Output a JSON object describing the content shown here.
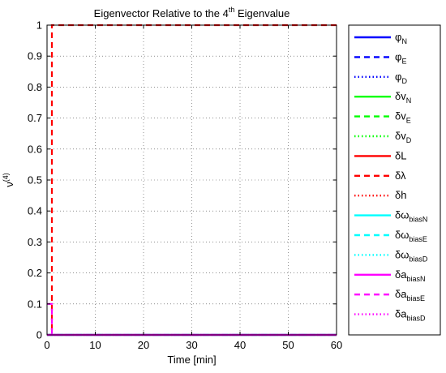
{
  "chart_data": {
    "type": "line",
    "title": "Eigenvector Relative to the 4th Eigenvalue",
    "title_parts": {
      "pre": "Eigenvector Relative to the 4",
      "sup": "th",
      "post": " Eigenvalue"
    },
    "xlabel": "Time [min]",
    "ylabel": {
      "base": "ν",
      "sup": "(4)"
    },
    "xlim": [
      0,
      60
    ],
    "ylim": [
      0,
      1
    ],
    "xticks": [
      0,
      10,
      20,
      30,
      40,
      50,
      60
    ],
    "yticks": [
      0,
      0.1,
      0.2,
      0.3,
      0.4,
      0.5,
      0.6,
      0.7,
      0.8,
      0.9,
      1
    ],
    "grid": true,
    "legend_position": "outside-right",
    "series": [
      {
        "name": "φN",
        "label": {
          "base": "φ",
          "sub": "N"
        },
        "color": "#0000ff",
        "style": "solid",
        "x": [
          0,
          60
        ],
        "y": [
          0,
          0
        ]
      },
      {
        "name": "φE",
        "label": {
          "base": "φ",
          "sub": "E"
        },
        "color": "#0000ff",
        "style": "dashed",
        "x": [
          0,
          60
        ],
        "y": [
          0,
          0
        ]
      },
      {
        "name": "φD",
        "label": {
          "base": "φ",
          "sub": "D"
        },
        "color": "#0000ff",
        "style": "dotted",
        "x": [
          0,
          60
        ],
        "y": [
          0,
          0
        ]
      },
      {
        "name": "δvN",
        "label": {
          "base": "δv",
          "sub": "N"
        },
        "color": "#00ff00",
        "style": "solid",
        "x": [
          0,
          60
        ],
        "y": [
          0,
          0
        ]
      },
      {
        "name": "δvE",
        "label": {
          "base": "δv",
          "sub": "E"
        },
        "color": "#00ff00",
        "style": "dashed",
        "x": [
          0,
          60
        ],
        "y": [
          0,
          0
        ]
      },
      {
        "name": "δvD",
        "label": {
          "base": "δv",
          "sub": "D"
        },
        "color": "#00ff00",
        "style": "dotted",
        "x": [
          0,
          60
        ],
        "y": [
          0,
          0
        ]
      },
      {
        "name": "δL",
        "label": {
          "base": "δL",
          "sub": ""
        },
        "color": "#ff0000",
        "style": "solid",
        "x": [
          0,
          60
        ],
        "y": [
          0,
          0
        ]
      },
      {
        "name": "δλ",
        "label": {
          "base": "δλ",
          "sub": ""
        },
        "color": "#ff0000",
        "style": "dashed",
        "x": [
          0,
          1,
          1,
          60
        ],
        "y": [
          0,
          0,
          1,
          1
        ]
      },
      {
        "name": "δh",
        "label": {
          "base": "δh",
          "sub": ""
        },
        "color": "#ff0000",
        "style": "dotted",
        "x": [
          0,
          60
        ],
        "y": [
          0,
          0
        ]
      },
      {
        "name": "δωbiasN",
        "label": {
          "base": "δω",
          "sub": "biasN"
        },
        "color": "#00ffff",
        "style": "solid",
        "x": [
          0,
          60
        ],
        "y": [
          0,
          0
        ]
      },
      {
        "name": "δωbiasE",
        "label": {
          "base": "δω",
          "sub": "biasE"
        },
        "color": "#00ffff",
        "style": "dashed",
        "x": [
          0,
          60
        ],
        "y": [
          0,
          0
        ]
      },
      {
        "name": "δωbiasD",
        "label": {
          "base": "δω",
          "sub": "biasD"
        },
        "color": "#00ffff",
        "style": "dotted",
        "x": [
          0,
          60
        ],
        "y": [
          0,
          0
        ]
      },
      {
        "name": "δabiasN",
        "label": {
          "base": "δa",
          "sub": "biasN"
        },
        "color": "#ff00ff",
        "style": "solid",
        "x": [
          0,
          60
        ],
        "y": [
          0,
          0
        ]
      },
      {
        "name": "δabiasE",
        "label": {
          "base": "δa",
          "sub": "biasE"
        },
        "color": "#ff00ff",
        "style": "dashed",
        "x": [
          0,
          1,
          1,
          60
        ],
        "y": [
          0.1,
          0.1,
          0,
          0
        ]
      },
      {
        "name": "δabiasD",
        "label": {
          "base": "δa",
          "sub": "biasD"
        },
        "color": "#ff00ff",
        "style": "dotted",
        "x": [
          0,
          60
        ],
        "y": [
          0,
          0
        ]
      }
    ]
  }
}
